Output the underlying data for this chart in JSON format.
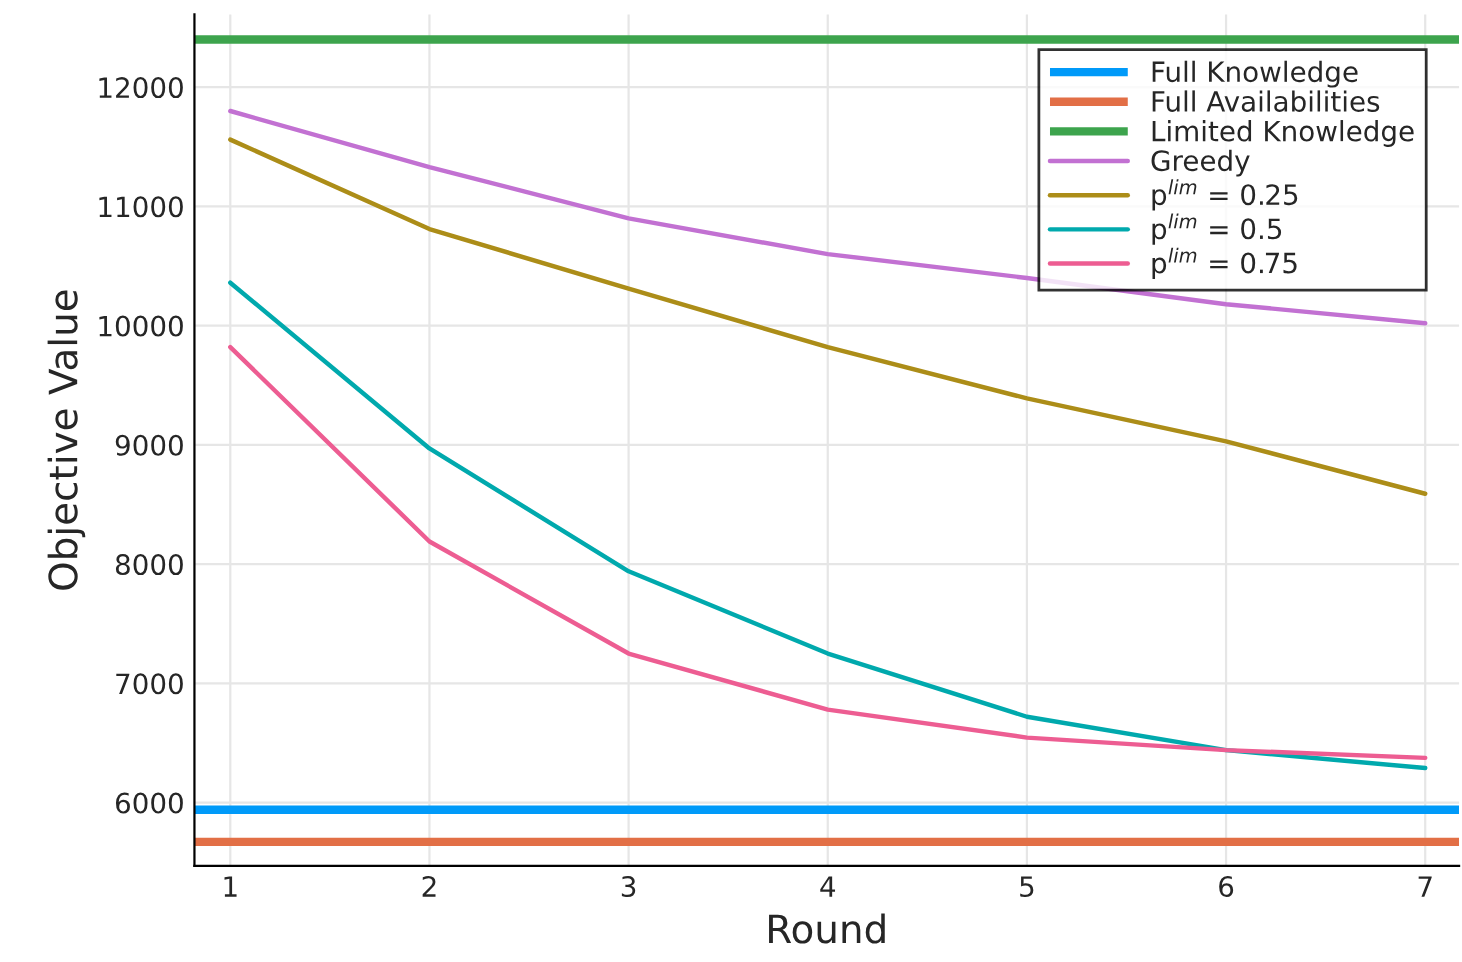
{
  "chart_data": {
    "type": "line",
    "xlabel": "Round",
    "ylabel": "Objective Value",
    "x": [
      1,
      2,
      3,
      4,
      5,
      6,
      7
    ],
    "xlim": [
      0.82,
      7.17
    ],
    "xticks": [
      1,
      2,
      3,
      4,
      5,
      6,
      7
    ],
    "ylim": [
      5470,
      12610
    ],
    "yticks": [
      6000,
      7000,
      8000,
      9000,
      10000,
      11000,
      12000
    ],
    "grid": true,
    "legend": "top right",
    "line_style": "solid",
    "ref_lines": [
      {
        "axis": "y",
        "value": 5940,
        "label": "Full Knowledge",
        "color": "#009af9"
      },
      {
        "axis": "y",
        "value": 5670,
        "label": "Full Availabilities",
        "color": "#e26f46"
      },
      {
        "axis": "y",
        "value": 12400,
        "label": "Limited Knowledge",
        "color": "#3da44d"
      }
    ],
    "series": [
      {
        "name": "Greedy",
        "color": "#c271d2",
        "values": [
          11800,
          11330,
          10900,
          10600,
          10400,
          10180,
          10020
        ]
      },
      {
        "name": "p$^{lim}$ = 0.25",
        "color": "#ac8d18",
        "values": [
          11560,
          10810,
          10310,
          9820,
          9390,
          9030,
          8590
        ]
      },
      {
        "name": "p$^{lim}$ = 0.5",
        "color": "#00a9ad",
        "values": [
          10360,
          8970,
          7940,
          7250,
          6720,
          6440,
          6290
        ]
      },
      {
        "name": "p$^{lim}$ = 0.75",
        "color": "#ed5d92",
        "values": [
          9820,
          8190,
          7250,
          6780,
          6545,
          6440,
          6375
        ]
      }
    ]
  }
}
